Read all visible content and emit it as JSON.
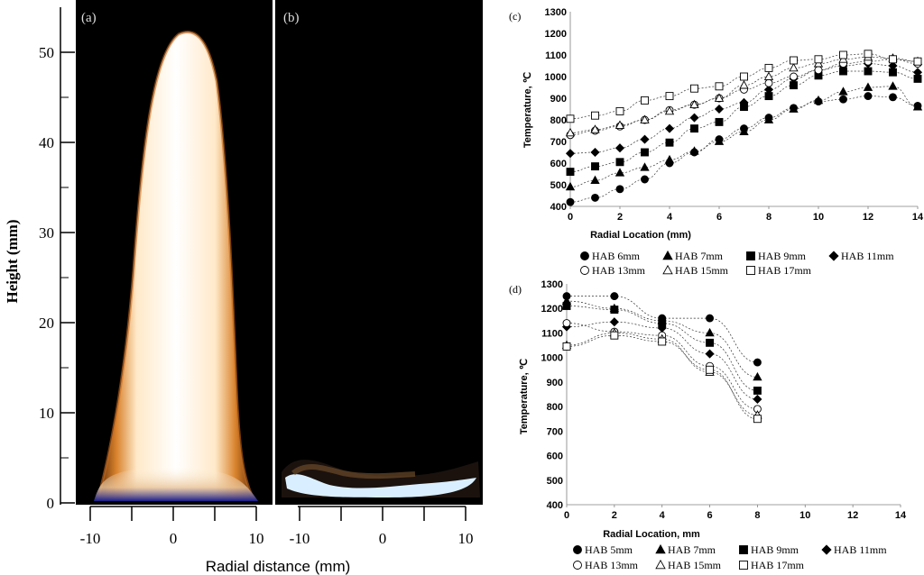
{
  "figure": {
    "panel_a_label": "(a)",
    "panel_b_label": "(b)",
    "panel_c_label": "(c)",
    "panel_d_label": "(d)"
  },
  "chart_data": [
    {
      "panel": "a-b",
      "type": "image-pair",
      "ylabel": "Height (mm)",
      "xlabel": "Radial distance (mm)",
      "yticks": [
        0,
        10,
        20,
        30,
        40,
        50
      ],
      "xticks_a": [
        -10,
        0,
        10
      ],
      "xticks_b": [
        -10,
        0,
        10
      ],
      "ylim": [
        0,
        55
      ],
      "xlim": [
        -12,
        12
      ]
    },
    {
      "panel": "c",
      "type": "scatter",
      "xlabel": "Radial Location (mm)",
      "ylabel": "Temperature, ℃",
      "xlim": [
        0,
        14
      ],
      "ylim": [
        400,
        1300
      ],
      "xticks": [
        0,
        2,
        4,
        6,
        8,
        10,
        12,
        14
      ],
      "yticks": [
        400,
        500,
        600,
        700,
        800,
        900,
        1000,
        1100,
        1200,
        1300
      ],
      "legend_position": "bottom",
      "x": [
        0,
        1,
        2,
        3,
        4,
        5,
        6,
        7,
        8,
        9,
        10,
        11,
        12,
        13,
        14
      ],
      "series": [
        {
          "name": "HAB 6mm",
          "marker": "circle-filled",
          "values": [
            420,
            440,
            480,
            525,
            600,
            650,
            710,
            760,
            810,
            855,
            885,
            895,
            910,
            905,
            865
          ]
        },
        {
          "name": "HAB 7mm",
          "marker": "triangle-filled",
          "values": [
            490,
            520,
            555,
            580,
            615,
            655,
            700,
            745,
            800,
            850,
            890,
            930,
            950,
            955,
            860
          ]
        },
        {
          "name": "HAB 9mm",
          "marker": "square-filled",
          "values": [
            560,
            585,
            605,
            650,
            695,
            760,
            790,
            860,
            910,
            960,
            1005,
            1025,
            1025,
            1020,
            990
          ]
        },
        {
          "name": "HAB 11mm",
          "marker": "diamond-filled",
          "values": [
            645,
            650,
            670,
            710,
            760,
            810,
            850,
            880,
            940,
            990,
            1030,
            1050,
            1060,
            1050,
            1020
          ]
        },
        {
          "name": "HAB 13mm",
          "marker": "circle-open",
          "values": [
            730,
            750,
            770,
            800,
            845,
            870,
            900,
            940,
            970,
            1000,
            1030,
            1060,
            1070,
            1080,
            1060
          ]
        },
        {
          "name": "HAB 15mm",
          "marker": "triangle-open",
          "values": [
            740,
            755,
            775,
            800,
            840,
            870,
            900,
            960,
            1000,
            1040,
            1060,
            1080,
            1090,
            1085,
            1070
          ]
        },
        {
          "name": "HAB 17mm",
          "marker": "square-open",
          "values": [
            805,
            820,
            840,
            890,
            910,
            945,
            955,
            1000,
            1040,
            1075,
            1080,
            1100,
            1105,
            1080,
            1070
          ]
        }
      ]
    },
    {
      "panel": "d",
      "type": "scatter",
      "xlabel": "Radial Location, mm",
      "ylabel": "Temperature, ℃",
      "xlim": [
        0,
        14
      ],
      "ylim": [
        400,
        1300
      ],
      "xticks": [
        0,
        2,
        4,
        6,
        8,
        10,
        12,
        14
      ],
      "yticks": [
        400,
        500,
        600,
        700,
        800,
        900,
        1000,
        1100,
        1200,
        1300
      ],
      "legend_position": "bottom",
      "x": [
        0,
        2,
        4,
        6,
        8
      ],
      "series": [
        {
          "name": "HAB 5mm",
          "marker": "circle-filled",
          "values": [
            1250,
            1250,
            1160,
            1160,
            980
          ]
        },
        {
          "name": "HAB 7mm",
          "marker": "triangle-filled",
          "values": [
            1230,
            1200,
            1150,
            1100,
            920
          ]
        },
        {
          "name": "HAB 9mm",
          "marker": "square-filled",
          "values": [
            1210,
            1195,
            1140,
            1060,
            865
          ]
        },
        {
          "name": "HAB 11mm",
          "marker": "diamond-filled",
          "values": [
            1125,
            1145,
            1120,
            1015,
            830
          ]
        },
        {
          "name": "HAB 13mm",
          "marker": "circle-open",
          "values": [
            1140,
            1105,
            1090,
            965,
            790
          ]
        },
        {
          "name": "HAB 15mm",
          "marker": "triangle-open",
          "values": [
            1050,
            1100,
            1075,
            940,
            765
          ]
        },
        {
          "name": "HAB 17mm",
          "marker": "square-open",
          "values": [
            1045,
            1090,
            1065,
            950,
            750
          ]
        }
      ]
    }
  ]
}
